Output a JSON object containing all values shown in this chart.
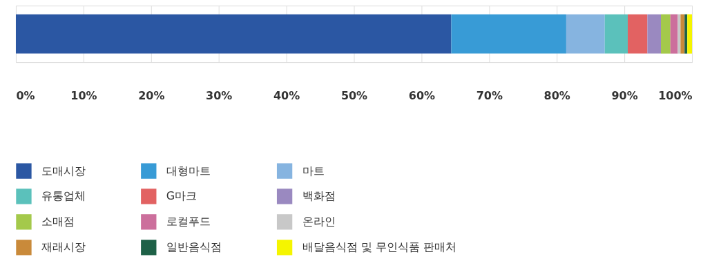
{
  "chart_data": {
    "type": "bar",
    "orientation": "horizontal",
    "stacked": true,
    "categories": [
      null
    ],
    "series": [
      {
        "name": "도매시장",
        "color": "#2b57a3",
        "values": [
          64.4
        ]
      },
      {
        "name": "대형마트",
        "color": "#389bd6",
        "values": [
          17.0
        ]
      },
      {
        "name": "마트",
        "color": "#86b4e0",
        "values": [
          5.7
        ]
      },
      {
        "name": "유통업체",
        "color": "#5bc1bb",
        "values": [
          3.4
        ]
      },
      {
        "name": "G마크",
        "color": "#e26262",
        "values": [
          2.9
        ]
      },
      {
        "name": "백화점",
        "color": "#9a89c0",
        "values": [
          2.0
        ]
      },
      {
        "name": "소매점",
        "color": "#a4c94b",
        "values": [
          1.4
        ]
      },
      {
        "name": "로컬푸드",
        "color": "#cc6f9c",
        "values": [
          1.1
        ]
      },
      {
        "name": "온라인",
        "color": "#c8c8c8",
        "values": [
          0.4
        ]
      },
      {
        "name": "재래시장",
        "color": "#c98a3a",
        "values": [
          0.6
        ]
      },
      {
        "name": "일반음식점",
        "color": "#1e6147",
        "values": [
          0.4
        ]
      },
      {
        "name": "배달음식점 및 무인식품 판매처",
        "color": "#f5f500",
        "values": [
          0.7
        ]
      }
    ],
    "xlim": [
      0,
      100
    ],
    "xticks": [
      {
        "value": 0,
        "label": "0%"
      },
      {
        "value": 10,
        "label": "10%"
      },
      {
        "value": 20,
        "label": "20%"
      },
      {
        "value": 30,
        "label": "30%"
      },
      {
        "value": 40,
        "label": "40%"
      },
      {
        "value": 50,
        "label": "50%"
      },
      {
        "value": 60,
        "label": "60%"
      },
      {
        "value": 70,
        "label": "70%"
      },
      {
        "value": 80,
        "label": "80%"
      },
      {
        "value": 90,
        "label": "90%"
      },
      {
        "value": 100,
        "label": "100%"
      }
    ],
    "grid": "x",
    "legend": "bottom",
    "tick_labels": "x"
  }
}
